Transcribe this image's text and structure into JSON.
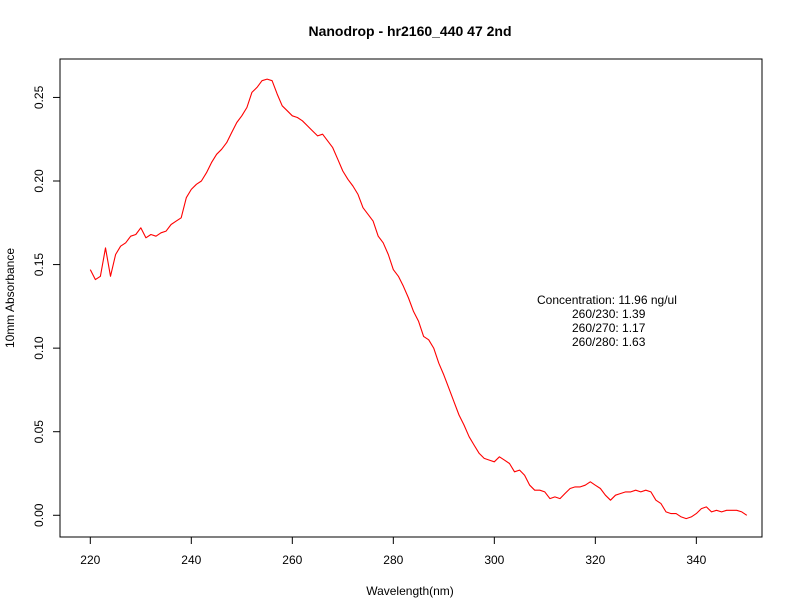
{
  "chart_data": {
    "type": "line",
    "title": "Nanodrop - hr2160_440 47 2nd",
    "xlabel": "Wavelength(nm)",
    "ylabel": "10mm Absorbance",
    "xlim": [
      214,
      353
    ],
    "ylim": [
      -0.013,
      0.273
    ],
    "x_ticks": [
      220,
      240,
      260,
      280,
      300,
      320,
      340
    ],
    "y_ticks": [
      0.0,
      0.05,
      0.1,
      0.15,
      0.2,
      0.25
    ],
    "x_tick_labels": [
      "220",
      "240",
      "260",
      "280",
      "300",
      "320",
      "340"
    ],
    "y_tick_labels": [
      "0.00",
      "0.05",
      "0.10",
      "0.15",
      "0.20",
      "0.25"
    ],
    "grid": false,
    "line_color": "#ff0000",
    "annotations": [
      "Concentration: 11.96 ng/ul",
      "260/230: 1.39",
      "260/270: 1.17",
      "260/280: 1.63"
    ],
    "series": [
      {
        "x": [
          220,
          221,
          222,
          223,
          224,
          225,
          226,
          227,
          228,
          229,
          230,
          231,
          232,
          233,
          234,
          235,
          236,
          237,
          238,
          239,
          240,
          241,
          242,
          243,
          244,
          245,
          246,
          247,
          248,
          249,
          250,
          251,
          252,
          253,
          254,
          255,
          256,
          257,
          258,
          259,
          260,
          261,
          262,
          263,
          264,
          265,
          266,
          267,
          268,
          269,
          270,
          271,
          272,
          273,
          274,
          275,
          276,
          277,
          278,
          279,
          280,
          281,
          282,
          283,
          284,
          285,
          286,
          287,
          288,
          289,
          290,
          291,
          292,
          293,
          294,
          295,
          296,
          297,
          298,
          299,
          300,
          301,
          302,
          303,
          304,
          305,
          306,
          307,
          308,
          309,
          310,
          311,
          312,
          313,
          314,
          315,
          316,
          317,
          318,
          319,
          320,
          321,
          322,
          323,
          324,
          325,
          326,
          327,
          328,
          329,
          330,
          331,
          332,
          333,
          334,
          335,
          336,
          337,
          338,
          339,
          340,
          341,
          342,
          343,
          344,
          345,
          346,
          347,
          348,
          349,
          350
        ],
        "values": [
          0.147,
          0.141,
          0.143,
          0.16,
          0.143,
          0.156,
          0.161,
          0.163,
          0.167,
          0.168,
          0.172,
          0.166,
          0.168,
          0.167,
          0.169,
          0.17,
          0.174,
          0.176,
          0.178,
          0.19,
          0.195,
          0.198,
          0.2,
          0.205,
          0.211,
          0.216,
          0.219,
          0.223,
          0.229,
          0.235,
          0.239,
          0.244,
          0.253,
          0.256,
          0.26,
          0.261,
          0.26,
          0.252,
          0.245,
          0.242,
          0.239,
          0.238,
          0.236,
          0.233,
          0.23,
          0.227,
          0.228,
          0.224,
          0.22,
          0.213,
          0.206,
          0.201,
          0.197,
          0.192,
          0.184,
          0.18,
          0.176,
          0.167,
          0.163,
          0.156,
          0.147,
          0.143,
          0.137,
          0.13,
          0.122,
          0.116,
          0.107,
          0.105,
          0.1,
          0.091,
          0.084,
          0.076,
          0.068,
          0.06,
          0.054,
          0.047,
          0.042,
          0.037,
          0.034,
          0.033,
          0.032,
          0.035,
          0.033,
          0.031,
          0.026,
          0.027,
          0.024,
          0.018,
          0.015,
          0.015,
          0.014,
          0.01,
          0.011,
          0.01,
          0.013,
          0.016,
          0.017,
          0.017,
          0.018,
          0.02,
          0.018,
          0.016,
          0.012,
          0.009,
          0.012,
          0.013,
          0.014,
          0.014,
          0.015,
          0.014,
          0.015,
          0.014,
          0.009,
          0.007,
          0.002,
          0.001,
          0.001,
          -0.001,
          -0.002,
          -0.001,
          0.001,
          0.004,
          0.005,
          0.002,
          0.003,
          0.002,
          0.003,
          0.003,
          0.003,
          0.002,
          0.0
        ]
      }
    ]
  }
}
